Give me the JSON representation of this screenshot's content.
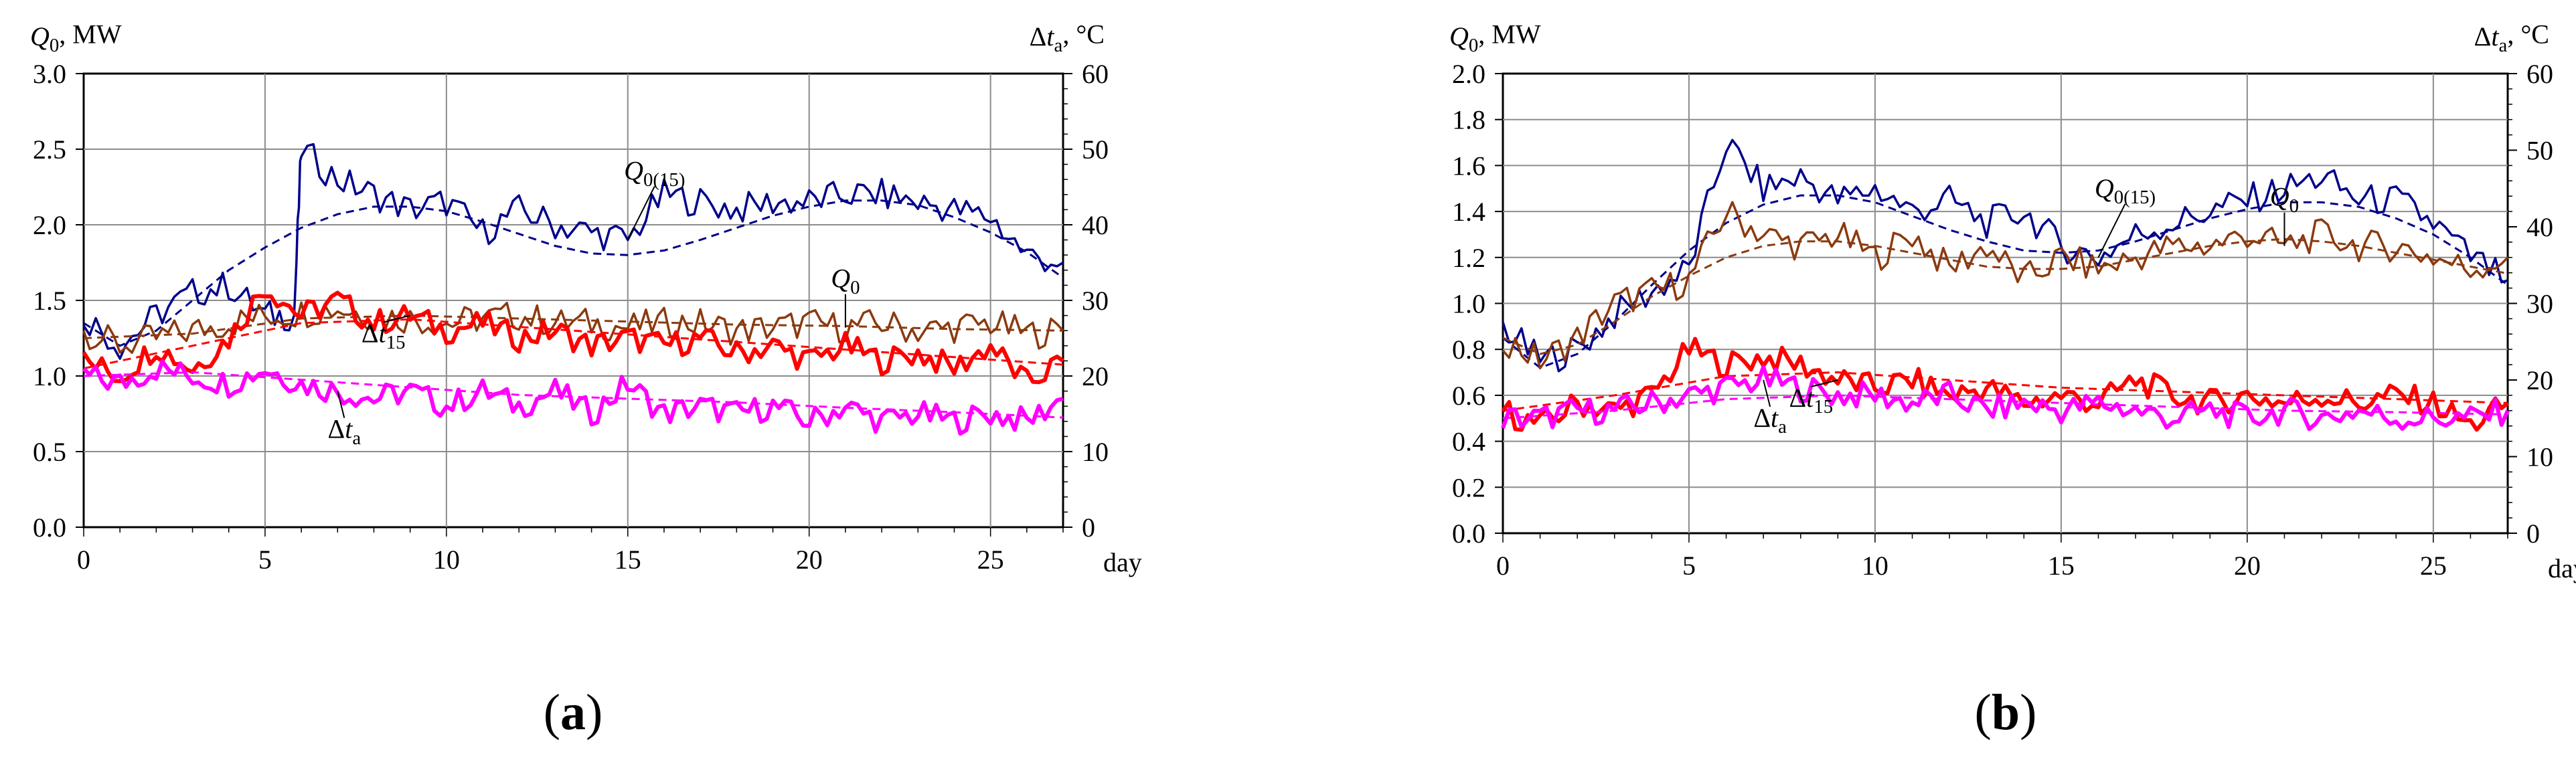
{
  "chart_data": [
    {
      "type": "line",
      "panel_label": "(a)",
      "y_left_label": "Q0, MW",
      "y_right_label": "Δta, °C",
      "x_label": "day",
      "xlim": [
        0,
        27
      ],
      "x_ticks": [
        "0",
        "5",
        "10",
        "15",
        "20",
        "25"
      ],
      "y_left_lim": [
        0,
        3
      ],
      "y_left_ticks": [
        "0.0",
        "0.5",
        "1.0",
        "1.5",
        "2.0",
        "2.5",
        "3.0"
      ],
      "y_right_lim": [
        0,
        60
      ],
      "y_right_ticks": [
        "0",
        "10",
        "20",
        "30",
        "40",
        "50",
        "60"
      ],
      "grid": true,
      "annotations": [
        {
          "text": "Q0(15)",
          "series": "Q0(15)"
        },
        {
          "text": "Q0",
          "series": "Q0"
        },
        {
          "text": "Δt15",
          "series": "Δt15"
        },
        {
          "text": "Δta",
          "series": "Δta"
        }
      ],
      "series": [
        {
          "name": "Q0(15)",
          "axis": "left",
          "color": "#00008b",
          "x": [
            0,
            1,
            2,
            3,
            4,
            5,
            5.8,
            6,
            7,
            8,
            9,
            10,
            11,
            12,
            13,
            14,
            15,
            16,
            17,
            18,
            19,
            20,
            21,
            22,
            23,
            24,
            25,
            26,
            27
          ],
          "values": [
            1.4,
            1.2,
            1.4,
            1.55,
            1.6,
            1.4,
            1.4,
            2.5,
            2.3,
            2.2,
            2.1,
            2.15,
            1.95,
            2.1,
            2.0,
            1.95,
            1.9,
            2.2,
            2.15,
            2.1,
            2.15,
            2.15,
            2.2,
            2.2,
            2.15,
            2.1,
            2.05,
            1.8,
            1.75
          ]
        },
        {
          "name": "Q0(15) trend",
          "axis": "left",
          "color": "#00008b",
          "dashed": true,
          "x": [
            0,
            1,
            2,
            3,
            4,
            5,
            6,
            7,
            8,
            9,
            10,
            11,
            12,
            13,
            14,
            15,
            16,
            17,
            18,
            19,
            20,
            21,
            22,
            23,
            24,
            25,
            26,
            27
          ],
          "values": [
            1.35,
            1.2,
            1.3,
            1.5,
            1.7,
            1.85,
            1.98,
            2.07,
            2.12,
            2.12,
            2.09,
            2.02,
            1.94,
            1.86,
            1.81,
            1.8,
            1.83,
            1.9,
            1.98,
            2.06,
            2.12,
            2.16,
            2.16,
            2.13,
            2.05,
            1.95,
            1.82,
            1.65
          ]
        },
        {
          "name": "Q0",
          "axis": "left",
          "color": "#8b3a0f",
          "x": [
            0,
            1,
            2,
            3,
            4,
            5,
            6,
            7,
            8,
            9,
            10,
            11,
            12,
            13,
            14,
            15,
            16,
            17,
            18,
            19,
            20,
            21,
            22,
            23,
            24,
            25,
            26,
            27
          ],
          "values": [
            1.3,
            1.2,
            1.25,
            1.3,
            1.35,
            1.4,
            1.42,
            1.45,
            1.4,
            1.38,
            1.35,
            1.38,
            1.4,
            1.35,
            1.35,
            1.32,
            1.35,
            1.35,
            1.3,
            1.32,
            1.35,
            1.32,
            1.35,
            1.3,
            1.32,
            1.35,
            1.28,
            1.3
          ]
        },
        {
          "name": "Q0 trend",
          "axis": "left",
          "color": "#8b3a0f",
          "dashed": true,
          "x": [
            0,
            3,
            6,
            9,
            12,
            15,
            18,
            21,
            24,
            27
          ],
          "values": [
            1.25,
            1.28,
            1.38,
            1.4,
            1.38,
            1.36,
            1.34,
            1.33,
            1.31,
            1.3
          ]
        },
        {
          "name": "Δt15",
          "axis": "right",
          "color": "#ff0000",
          "x": [
            0,
            1,
            2,
            3,
            4,
            5,
            6,
            7,
            8,
            9,
            10,
            11,
            12,
            13,
            14,
            15,
            16,
            17,
            18,
            19,
            20,
            21,
            22,
            23,
            24,
            25,
            26,
            27
          ],
          "values": [
            22,
            20,
            24,
            21,
            25,
            32,
            28,
            30,
            27,
            28,
            26,
            27,
            25,
            26,
            24,
            25,
            24,
            25,
            23,
            24,
            22,
            24,
            22,
            23,
            21,
            24,
            19,
            22
          ]
        },
        {
          "name": "Δt15 trend",
          "axis": "right",
          "color": "#ff0000",
          "dashed": true,
          "x": [
            0,
            3,
            6,
            9,
            12,
            15,
            18,
            21,
            24,
            27
          ],
          "values": [
            21,
            24,
            27,
            27.5,
            26.5,
            25.5,
            24.5,
            23.5,
            22.5,
            21.5
          ]
        },
        {
          "name": "Δta",
          "axis": "right",
          "color": "#ff00ff",
          "x": [
            0,
            1,
            2,
            3,
            4,
            5,
            6,
            7,
            8,
            9,
            10,
            11,
            12,
            13,
            14,
            15,
            16,
            17,
            18,
            19,
            20,
            21,
            22,
            23,
            24,
            25,
            26,
            27
          ],
          "values": [
            20,
            19,
            21,
            20,
            19,
            21,
            19,
            18,
            17,
            18,
            16,
            18,
            16,
            18,
            15,
            19,
            15,
            16,
            15,
            16,
            14,
            16,
            14,
            15,
            14,
            15,
            14,
            17
          ]
        },
        {
          "name": "Δta trend",
          "axis": "right",
          "color": "#ff00ff",
          "dashed": true,
          "x": [
            0,
            3,
            6,
            9,
            12,
            15,
            18,
            21,
            24,
            27
          ],
          "values": [
            20,
            20.5,
            19.5,
            18.5,
            17.5,
            17,
            16.5,
            15.8,
            15.2,
            14.5
          ]
        }
      ]
    },
    {
      "type": "line",
      "panel_label": "(b)",
      "y_left_label": "Q0, MW",
      "y_right_label": "Δta, °C",
      "x_label": "day",
      "xlim": [
        0,
        27
      ],
      "x_ticks": [
        "0",
        "5",
        "10",
        "15",
        "20",
        "25"
      ],
      "y_left_lim": [
        0,
        2
      ],
      "y_left_ticks": [
        "0.0",
        "0.2",
        "0.4",
        "0.6",
        "0.8",
        "1.0",
        "1.2",
        "1.4",
        "1.6",
        "1.8",
        "2.0"
      ],
      "y_right_lim": [
        0,
        60
      ],
      "y_right_ticks": [
        "0",
        "10",
        "20",
        "30",
        "40",
        "50",
        "60"
      ],
      "grid": true,
      "annotations": [
        {
          "text": "Q0(15)",
          "series": "Q0(15)"
        },
        {
          "text": "Q0",
          "series": "Q0"
        },
        {
          "text": "Δt15",
          "series": "Δt15"
        },
        {
          "text": "Δta",
          "series": "Δta"
        }
      ],
      "series": [
        {
          "name": "Q0(15)",
          "axis": "left",
          "color": "#00008b",
          "x": [
            0,
            1,
            2,
            3,
            4,
            5,
            6,
            7,
            8,
            9,
            10,
            11,
            12,
            13,
            14,
            15,
            16,
            17,
            18,
            19,
            20,
            21,
            22,
            23,
            24,
            25,
            26,
            27
          ],
          "values": [
            0.9,
            0.75,
            0.8,
            0.95,
            1.05,
            1.15,
            1.7,
            1.5,
            1.55,
            1.45,
            1.5,
            1.4,
            1.45,
            1.35,
            1.4,
            1.25,
            1.2,
            1.3,
            1.35,
            1.4,
            1.45,
            1.5,
            1.55,
            1.45,
            1.45,
            1.35,
            1.2,
            1.1
          ]
        },
        {
          "name": "Q0(15) trend",
          "axis": "left",
          "color": "#00008b",
          "dashed": true,
          "x": [
            0,
            1,
            2,
            3,
            4,
            5,
            6,
            7,
            8,
            9,
            10,
            11,
            12,
            13,
            14,
            15,
            16,
            17,
            18,
            19,
            20,
            21,
            22,
            23,
            24,
            25,
            26,
            27
          ],
          "values": [
            0.85,
            0.72,
            0.78,
            0.92,
            1.08,
            1.23,
            1.35,
            1.43,
            1.47,
            1.47,
            1.44,
            1.38,
            1.32,
            1.27,
            1.23,
            1.22,
            1.23,
            1.27,
            1.32,
            1.37,
            1.41,
            1.44,
            1.44,
            1.42,
            1.37,
            1.3,
            1.2,
            1.08
          ]
        },
        {
          "name": "Q0",
          "axis": "left",
          "color": "#8b3a0f",
          "x": [
            0,
            1,
            2,
            3,
            4,
            5,
            6,
            7,
            8,
            9,
            10,
            11,
            12,
            13,
            14,
            15,
            16,
            17,
            18,
            19,
            20,
            21,
            22,
            23,
            24,
            25,
            26,
            27
          ],
          "values": [
            0.85,
            0.75,
            0.85,
            1.0,
            1.05,
            1.1,
            1.4,
            1.3,
            1.25,
            1.3,
            1.2,
            1.3,
            1.15,
            1.25,
            1.1,
            1.2,
            1.15,
            1.2,
            1.25,
            1.25,
            1.3,
            1.25,
            1.3,
            1.25,
            1.25,
            1.2,
            1.15,
            1.2
          ]
        },
        {
          "name": "Q0 trend",
          "axis": "left",
          "color": "#8b3a0f",
          "dashed": true,
          "x": [
            0,
            1,
            2,
            3,
            4,
            5,
            6,
            7,
            8,
            9,
            10,
            11,
            12,
            13,
            14,
            15,
            16,
            17,
            18,
            19,
            20,
            21,
            22,
            23,
            24,
            25,
            26,
            27
          ],
          "values": [
            0.85,
            0.78,
            0.82,
            0.92,
            1.03,
            1.12,
            1.2,
            1.25,
            1.27,
            1.27,
            1.25,
            1.22,
            1.19,
            1.16,
            1.15,
            1.15,
            1.16,
            1.19,
            1.22,
            1.25,
            1.27,
            1.28,
            1.27,
            1.25,
            1.22,
            1.19,
            1.16,
            1.13
          ]
        },
        {
          "name": "Δt15",
          "axis": "right",
          "color": "#ff0000",
          "x": [
            0,
            1,
            2,
            3,
            4,
            5,
            6,
            7,
            8,
            9,
            10,
            11,
            12,
            13,
            14,
            15,
            16,
            17,
            18,
            19,
            20,
            21,
            22,
            23,
            24,
            25,
            26,
            27
          ],
          "values": [
            16,
            14,
            17,
            16,
            18,
            24,
            22,
            23,
            22,
            20,
            19,
            20,
            18,
            19,
            17,
            18,
            17,
            20,
            18,
            17,
            18,
            17,
            18,
            17,
            18,
            17,
            14,
            17
          ]
        },
        {
          "name": "Δt15 trend",
          "axis": "right",
          "color": "#ff0000",
          "dashed": true,
          "x": [
            0,
            3,
            6,
            9,
            12,
            15,
            18,
            21,
            24,
            27
          ],
          "values": [
            16,
            18,
            20.5,
            21,
            20,
            19,
            18.5,
            18,
            17.5,
            17
          ]
        },
        {
          "name": "Δta",
          "axis": "right",
          "color": "#ff00ff",
          "x": [
            0,
            1,
            2,
            3,
            4,
            5,
            6,
            7,
            8,
            9,
            10,
            11,
            12,
            13,
            14,
            15,
            16,
            17,
            18,
            19,
            20,
            21,
            22,
            23,
            24,
            25,
            26,
            27
          ],
          "values": [
            15,
            15,
            16,
            16,
            17,
            18,
            19,
            20,
            19,
            18,
            18,
            17,
            18,
            16,
            17,
            16,
            17,
            16,
            15,
            16,
            15,
            16,
            15,
            16,
            15,
            15,
            15,
            16
          ]
        },
        {
          "name": "Δta trend",
          "axis": "right",
          "color": "#ff00ff",
          "dashed": true,
          "x": [
            0,
            3,
            6,
            9,
            12,
            15,
            18,
            21,
            24,
            27
          ],
          "values": [
            15,
            16,
            17.5,
            18,
            17.5,
            17,
            16.5,
            16,
            15.8,
            15.5
          ]
        }
      ]
    }
  ]
}
